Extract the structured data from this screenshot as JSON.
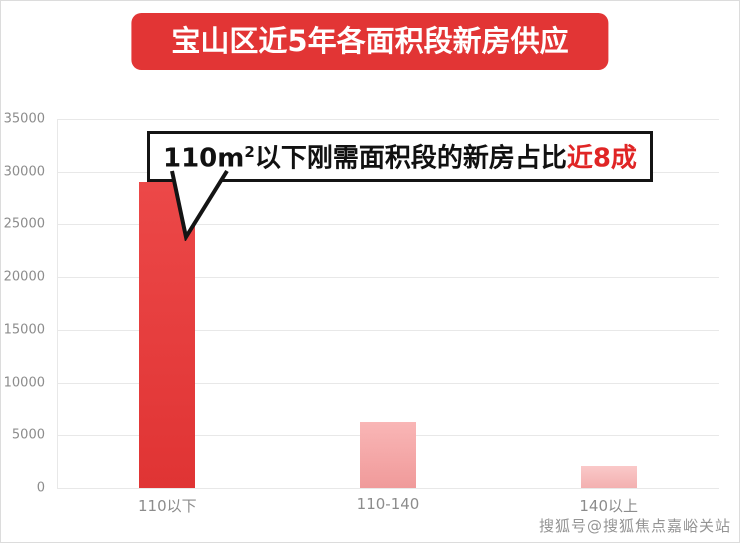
{
  "page": {
    "title": "宝山区近5年各面积段新房供应",
    "watermark": "搜狐号@搜狐焦点嘉峪关站"
  },
  "callout": {
    "part1": "110m",
    "sup": "2",
    "part2": "以下刚需面积段的新房占比",
    "highlight": "近8成"
  },
  "colors": {
    "badge_red": "#e23535",
    "highlight_red": "#e02525",
    "grid": "#e8e8e8",
    "axis_text": "#8c8c8c",
    "watermark_gray": "#949494"
  },
  "chart_data": {
    "type": "bar",
    "title": "宝山区近5年各面积段新房供应",
    "categories": [
      "110以下",
      "110-140",
      "140以上"
    ],
    "values": [
      29000,
      6300,
      2100
    ],
    "xlabel": "",
    "ylabel": "",
    "ylim": [
      0,
      35000
    ],
    "yticks": [
      0,
      5000,
      10000,
      15000,
      20000,
      25000,
      30000,
      35000
    ],
    "grid": true,
    "legend": false,
    "bar_gradients": [
      [
        "#ec4848",
        "#e03434"
      ],
      [
        "#f9b6b6",
        "#f09a9a"
      ],
      [
        "#fac9c9",
        "#f3b0b0"
      ]
    ],
    "annotation": "110m²以下刚需面积段的新房占比近8成"
  }
}
